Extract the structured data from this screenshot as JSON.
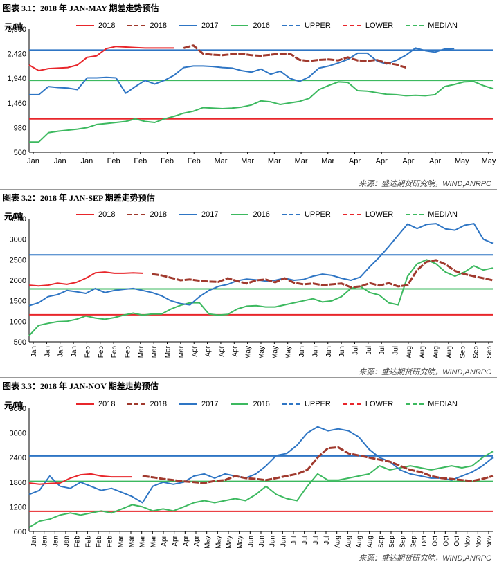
{
  "source": "来源：盛达期货研究院，WIND,ANRPC",
  "legend": [
    {
      "label": "2018",
      "color": "#e8262b",
      "style": "solid"
    },
    {
      "label": "2018",
      "color": "#a0392d",
      "style": "dashed"
    },
    {
      "label": "2017",
      "color": "#2e75c4",
      "style": "solid"
    },
    {
      "label": "2016",
      "color": "#3cb95f",
      "style": "solid"
    },
    {
      "label": "UPPER",
      "color": "#2e75c4",
      "style": "dashed"
    },
    {
      "label": "LOWER",
      "color": "#e8262b",
      "style": "dashed"
    },
    {
      "label": "MEDIAN",
      "color": "#3cb95f",
      "style": "dashed"
    }
  ],
  "colors": {
    "red": "#e8262b",
    "brown": "#a0392d",
    "blue": "#2e75c4",
    "green": "#3cb95f"
  },
  "chart_data": [
    {
      "type": "line",
      "title": "图表 3.1：2018 年 JAN-MAY 期差走势预估",
      "unit": "元/吨",
      "yticks": [
        "2,900",
        "2,420",
        "1,940",
        "1,460",
        "980",
        "500"
      ],
      "ylim": [
        500,
        2900
      ],
      "xticks": [
        "Jan",
        "Jan",
        "Jan",
        "Feb",
        "Feb",
        "Feb",
        "Feb",
        "Mar",
        "Mar",
        "Mar",
        "Mar",
        "Mar",
        "Apr",
        "Apr",
        "Apr",
        "Apr",
        "May",
        "May"
      ],
      "hlines": {
        "upper": 2490,
        "lower": 1150,
        "median": 1900
      },
      "series": [
        {
          "key": "red",
          "values": [
            2200,
            2090,
            2130,
            2140,
            2150,
            2200,
            2350,
            2380,
            2520,
            2560,
            2550,
            2540,
            2530,
            2530,
            2530,
            2530
          ]
        },
        {
          "key": "brown",
          "values": [
            null,
            null,
            null,
            null,
            null,
            null,
            null,
            null,
            null,
            null,
            null,
            null,
            null,
            null,
            null,
            null,
            2530,
            2580,
            2420,
            2400,
            2390,
            2410,
            2420,
            2390,
            2380,
            2400,
            2420,
            2420,
            2300,
            2280,
            2300,
            2310,
            2290,
            2350,
            2290,
            2280,
            2300,
            2240,
            2210,
            2150
          ]
        },
        {
          "key": "blue",
          "values": [
            1620,
            1620,
            1780,
            1760,
            1750,
            1720,
            1950,
            1950,
            1960,
            1950,
            1650,
            1780,
            1900,
            1830,
            1900,
            2000,
            2150,
            2180,
            2180,
            2170,
            2150,
            2140,
            2090,
            2060,
            2120,
            2020,
            2080,
            1940,
            1880,
            1970,
            2140,
            2180,
            2240,
            2310,
            2430,
            2430,
            2280,
            2220,
            2290,
            2390,
            2530,
            2480,
            2450,
            2510,
            2520
          ]
        },
        {
          "key": "green",
          "values": [
            700,
            700,
            880,
            910,
            930,
            950,
            980,
            1040,
            1060,
            1080,
            1100,
            1150,
            1100,
            1080,
            1150,
            1200,
            1260,
            1300,
            1370,
            1360,
            1350,
            1360,
            1380,
            1420,
            1500,
            1480,
            1430,
            1460,
            1490,
            1550,
            1720,
            1800,
            1870,
            1860,
            1700,
            1690,
            1660,
            1630,
            1620,
            1600,
            1610,
            1600,
            1620,
            1780,
            1820,
            1870,
            1880,
            1800,
            1740
          ]
        }
      ]
    },
    {
      "type": "line",
      "title": "图表 3.2：2018 年 JAN-SEP 期差走势预估",
      "unit": "元/吨",
      "yticks": [
        "3500",
        "3000",
        "2500",
        "2000",
        "1500",
        "1000",
        "500"
      ],
      "ylim": [
        500,
        3500
      ],
      "xticks": [
        "Jan",
        "Jan",
        "Jan",
        "Jan",
        "Feb",
        "Feb",
        "Feb",
        "Feb",
        "Mar",
        "Mar",
        "Mar",
        "Mar",
        "Apr",
        "Apr",
        "Apr",
        "Apr",
        "May",
        "May",
        "May",
        "May",
        "Jun",
        "Jun",
        "Jun",
        "Jun",
        "Jul",
        "Jul",
        "Jul",
        "Jul",
        "Aug",
        "Aug",
        "Aug",
        "Aug",
        "Sep",
        "Sep",
        "Sep"
      ],
      "hlines": {
        "upper": 2620,
        "lower": 1160,
        "median": 1790
      },
      "series": [
        {
          "key": "red",
          "values": [
            1880,
            1860,
            1880,
            1930,
            1900,
            1950,
            2050,
            2180,
            2200,
            2170,
            2170,
            2180,
            2170
          ]
        },
        {
          "key": "brown",
          "values": [
            null,
            null,
            null,
            null,
            null,
            null,
            null,
            null,
            null,
            null,
            null,
            null,
            null,
            2150,
            2120,
            2060,
            2000,
            2020,
            1990,
            1970,
            1960,
            2050,
            1980,
            1920,
            2000,
            2020,
            1950,
            2050,
            1940,
            1900,
            1920,
            1880,
            1900,
            1920,
            1830,
            1850,
            1930,
            1870,
            1930,
            1850,
            1880,
            2250,
            2450,
            2490,
            2390,
            2230,
            2150,
            2100,
            2050,
            2000
          ]
        },
        {
          "key": "blue",
          "values": [
            1380,
            1450,
            1600,
            1650,
            1750,
            1720,
            1680,
            1800,
            1700,
            1750,
            1780,
            1800,
            1750,
            1700,
            1620,
            1500,
            1430,
            1400,
            1600,
            1750,
            1850,
            1900,
            1990,
            2030,
            2010,
            1980,
            2000,
            2050,
            2000,
            2020,
            2100,
            2150,
            2120,
            2050,
            2000,
            2080,
            2330,
            2560,
            2820,
            3100,
            3370,
            3260,
            3360,
            3380,
            3250,
            3220,
            3340,
            3380,
            3000,
            2900
          ]
        },
        {
          "key": "green",
          "values": [
            650,
            900,
            950,
            990,
            1000,
            1050,
            1130,
            1080,
            1050,
            1090,
            1150,
            1200,
            1150,
            1180,
            1180,
            1300,
            1390,
            1450,
            1450,
            1180,
            1150,
            1170,
            1300,
            1370,
            1380,
            1350,
            1350,
            1400,
            1450,
            1500,
            1550,
            1470,
            1500,
            1600,
            1800,
            1850,
            1700,
            1640,
            1450,
            1400,
            2100,
            2400,
            2500,
            2400,
            2200,
            2100,
            2200,
            2350,
            2250,
            2300
          ]
        }
      ]
    },
    {
      "type": "line",
      "title": "图表 3.3：2018 年 JAN-NOV 期差走势预估",
      "unit": "元/吨",
      "yticks": [
        "3600",
        "3000",
        "2400",
        "1800",
        "1200",
        "600"
      ],
      "ylim": [
        600,
        3600
      ],
      "xticks": [
        "Jan",
        "Jan",
        "Jan",
        "Jan",
        "Feb",
        "Feb",
        "Feb",
        "Feb",
        "Mar",
        "Mar",
        "Mar",
        "Mar",
        "Apr",
        "Apr",
        "Apr",
        "Apr",
        "May",
        "May",
        "May",
        "May",
        "Jun",
        "Jun",
        "Jun",
        "Jun",
        "Jul",
        "Jul",
        "Jul",
        "Jul",
        "Aug",
        "Aug",
        "Aug",
        "Aug",
        "Sep",
        "Sep",
        "Sep",
        "Sep",
        "Oct",
        "Oct",
        "Oct",
        "Oct",
        "Nov",
        "Nov",
        "Nov"
      ],
      "hlines": {
        "upper": 2440,
        "lower": 1090,
        "median": 1820
      },
      "series": [
        {
          "key": "red",
          "values": [
            1780,
            1750,
            1770,
            1780,
            1900,
            1980,
            2000,
            1950,
            1930,
            1930,
            1930
          ]
        },
        {
          "key": "brown",
          "values": [
            null,
            null,
            null,
            null,
            null,
            null,
            null,
            null,
            null,
            null,
            null,
            1950,
            1920,
            1880,
            1850,
            1820,
            1800,
            1780,
            1830,
            1850,
            1950,
            1900,
            1880,
            1850,
            1900,
            1950,
            2000,
            2100,
            2400,
            2630,
            2650,
            2500,
            2450,
            2400,
            2350,
            2300,
            2200,
            2100,
            2050,
            1950,
            1900,
            1880,
            1850,
            1830,
            1880,
            1950
          ]
        },
        {
          "key": "blue",
          "values": [
            1500,
            1600,
            1950,
            1700,
            1650,
            1800,
            1700,
            1600,
            1650,
            1550,
            1450,
            1300,
            1700,
            1800,
            1750,
            1800,
            1950,
            2000,
            1900,
            2000,
            1950,
            1900,
            2000,
            2200,
            2450,
            2500,
            2700,
            3000,
            3150,
            3050,
            3100,
            3050,
            2900,
            2600,
            2400,
            2300,
            2100,
            2000,
            1950,
            1900,
            1900,
            1850,
            1950,
            2050,
            2200,
            2400
          ]
        },
        {
          "key": "green",
          "values": [
            700,
            850,
            900,
            1000,
            1050,
            1000,
            1050,
            1100,
            1050,
            1150,
            1250,
            1200,
            1100,
            1150,
            1100,
            1200,
            1300,
            1350,
            1300,
            1350,
            1400,
            1350,
            1500,
            1700,
            1500,
            1400,
            1350,
            1700,
            2000,
            1850,
            1850,
            1900,
            1950,
            2000,
            2200,
            2100,
            2150,
            2200,
            2150,
            2100,
            2150,
            2200,
            2150,
            2200,
            2400,
            2550
          ]
        }
      ]
    }
  ]
}
